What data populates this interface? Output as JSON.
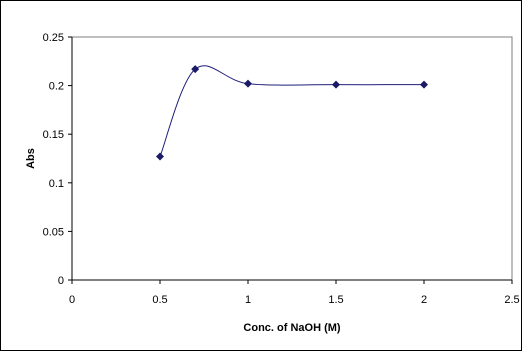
{
  "chart_data": {
    "type": "scatter",
    "title": "",
    "xlabel": "Conc. of NaOH (M)",
    "ylabel": "Abs",
    "xlim": [
      0,
      2.5
    ],
    "ylim": [
      0,
      0.25
    ],
    "x_ticks": [
      "0",
      "0.5",
      "1",
      "1.5",
      "2",
      "2.5"
    ],
    "y_ticks": [
      "0",
      "0.05",
      "0.1",
      "0.15",
      "0.2",
      "0.25"
    ],
    "grid": false,
    "line_style": "smoothed",
    "series": [
      {
        "x": [
          0.5,
          0.7,
          1.0,
          1.5,
          2.0
        ],
        "y": [
          0.127,
          0.217,
          0.202,
          0.201,
          0.201
        ]
      }
    ],
    "colors": {
      "series": "#1f1f7a",
      "marker": "#1a1a66",
      "axis": "#000000",
      "border": "#000000"
    }
  }
}
